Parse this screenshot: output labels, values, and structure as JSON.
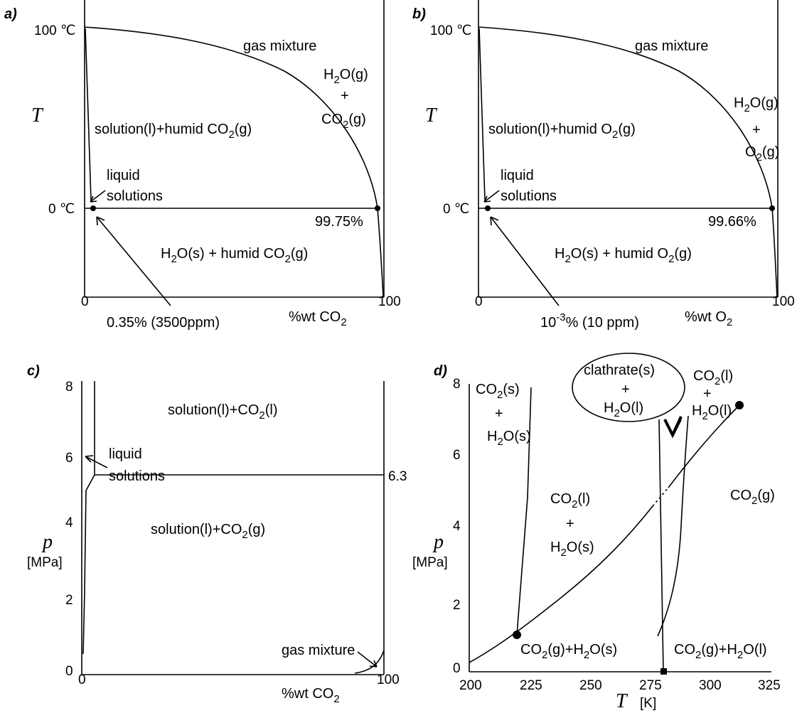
{
  "panels": {
    "a": {
      "letter": "a)",
      "y_top_tick": "100 ℃",
      "y_zero_tick": "0 ℃",
      "y_symbol": "T",
      "x_zero_tick": "0",
      "x_hundred_tick": "100",
      "x_axis_label": "%wt CO",
      "x_axis_sub": "2",
      "region_gas": "gas mixture",
      "gas_comp_1": "H",
      "gas_comp_1_sub": "2",
      "gas_comp_1_rest": "O(g)",
      "gas_plus": "+",
      "gas_comp_2": "CO",
      "gas_comp_2_sub": "2",
      "gas_comp_2_rest": "(g)",
      "region_solution": "solution(l)+humid CO",
      "region_solution_sub": "2",
      "region_solution_rest": "(g)",
      "liquid_label_1": "liquid",
      "liquid_label_2": "solutions",
      "percent_label": "99.75%",
      "region_solid": "H",
      "region_solid_sub": "2",
      "region_solid_mid": "O(s) + humid CO",
      "region_solid_sub2": "2",
      "region_solid_rest": "(g)",
      "solubility_note": "0.35% (3500ppm)"
    },
    "b": {
      "letter": "b)",
      "y_top_tick": "100 ℃",
      "y_zero_tick": "0 ℃",
      "y_symbol": "T",
      "x_zero_tick": "0",
      "x_hundred_tick": "100",
      "x_axis_label": "%wt O",
      "x_axis_sub": "2",
      "region_gas": "gas mixture",
      "gas_comp_1": "H",
      "gas_comp_1_sub": "2",
      "gas_comp_1_rest": "O(g)",
      "gas_plus": "+",
      "gas_comp_2": "O",
      "gas_comp_2_sub": "2",
      "gas_comp_2_rest": "(g)",
      "region_solution": "solution(l)+humid O",
      "region_solution_sub": "2",
      "region_solution_rest": "(g)",
      "liquid_label_1": "liquid",
      "liquid_label_2": "solutions",
      "percent_label": "99.66%",
      "region_solid": "H",
      "region_solid_sub": "2",
      "region_solid_mid": "O(s) + humid O",
      "region_solid_sub2": "2",
      "region_solid_rest": "(g)",
      "solubility_base": "10",
      "solubility_exp": "-3",
      "solubility_rest": "% (10 ppm)"
    },
    "c": {
      "letter": "c)",
      "y_ticks": [
        "0",
        "2",
        "4",
        "6",
        "8"
      ],
      "y_symbol": "p",
      "y_unit": "[MPa]",
      "x_zero_tick": "0",
      "x_hundred_tick": "100",
      "x_axis_label": "%wt CO",
      "x_axis_sub": "2",
      "region_top": "solution(l)+CO",
      "region_top_sub": "2",
      "region_top_rest": "(l)",
      "pressure_label": "6.3",
      "liquid_label_1": "liquid",
      "liquid_label_2": "solutions",
      "region_mid": "solution(l)+CO",
      "region_mid_sub": "2",
      "region_mid_rest": "(g)",
      "gas_mixture": "gas mixture"
    },
    "d": {
      "letter": "d)",
      "y_ticks": [
        "0",
        "2",
        "4",
        "6",
        "8"
      ],
      "y_symbol": "p",
      "y_unit": "[MPa]",
      "x_ticks": [
        "200",
        "225",
        "250",
        "275",
        "300",
        "325"
      ],
      "x_symbol": "T",
      "x_unit": "[K]",
      "co2s_1": "CO",
      "co2s_1_sub": "2",
      "co2s_1_rest": "(s)",
      "co2s_plus": "+",
      "co2s_2": "H",
      "co2s_2_sub": "2",
      "co2s_2_rest": "O(s)",
      "clathrate_1": "clathrate(s)",
      "clathrate_plus": "+",
      "clathrate_2": "H",
      "clathrate_2_sub": "2",
      "clathrate_2_rest": "O(l)",
      "co2l_1": "CO",
      "co2l_1_sub": "2",
      "co2l_1_rest": "(l)",
      "co2l_plus": "+",
      "co2l_2": "H",
      "co2l_2_sub": "2",
      "co2l_2_rest": "O(l)",
      "mid_1": "CO",
      "mid_1_sub": "2",
      "mid_1_rest": "(l)",
      "mid_plus": "+",
      "mid_2": "H",
      "mid_2_sub": "2",
      "mid_2_rest": "O(s)",
      "co2g": "CO",
      "co2g_sub": "2",
      "co2g_rest": "(g)",
      "bottom_1": "CO",
      "bottom_1_sub": "2",
      "bottom_1_mid": "(g)+H",
      "bottom_1_sub2": "2",
      "bottom_1_rest": "O(s)",
      "bottom_2": "CO",
      "bottom_2_sub": "2",
      "bottom_2_mid": "(g)+H",
      "bottom_2_sub2": "2",
      "bottom_2_rest": "O(l)"
    }
  }
}
